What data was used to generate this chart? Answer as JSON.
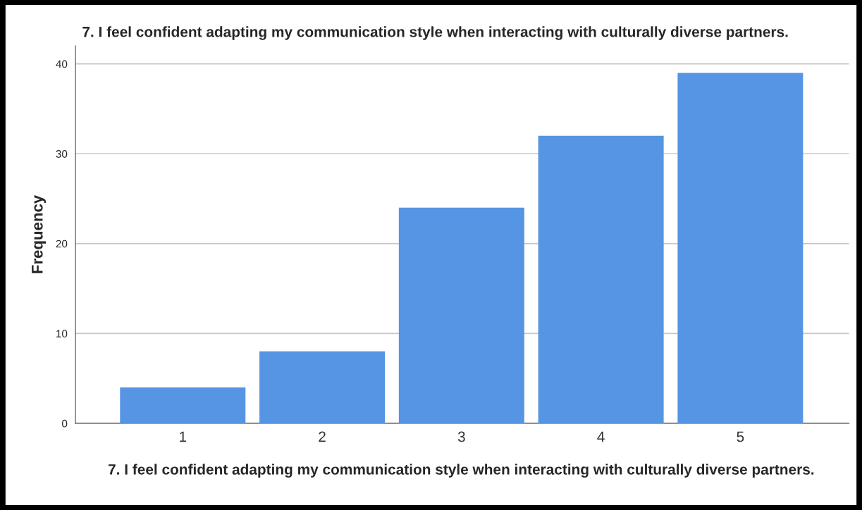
{
  "chart_data": {
    "type": "bar",
    "title": "7. I feel confident adapting my communication style when interacting with culturally diverse partners.",
    "xlabel": "7. I feel confident adapting my communication style when interacting with culturally diverse partners.",
    "ylabel": "Frequency",
    "categories": [
      "1",
      "2",
      "3",
      "4",
      "5"
    ],
    "values": [
      4,
      8,
      24,
      32,
      39
    ],
    "color": "#5595e3",
    "ylim": [
      0,
      42
    ],
    "yticks": [
      0,
      10,
      20,
      30,
      40
    ],
    "grid": "y"
  }
}
